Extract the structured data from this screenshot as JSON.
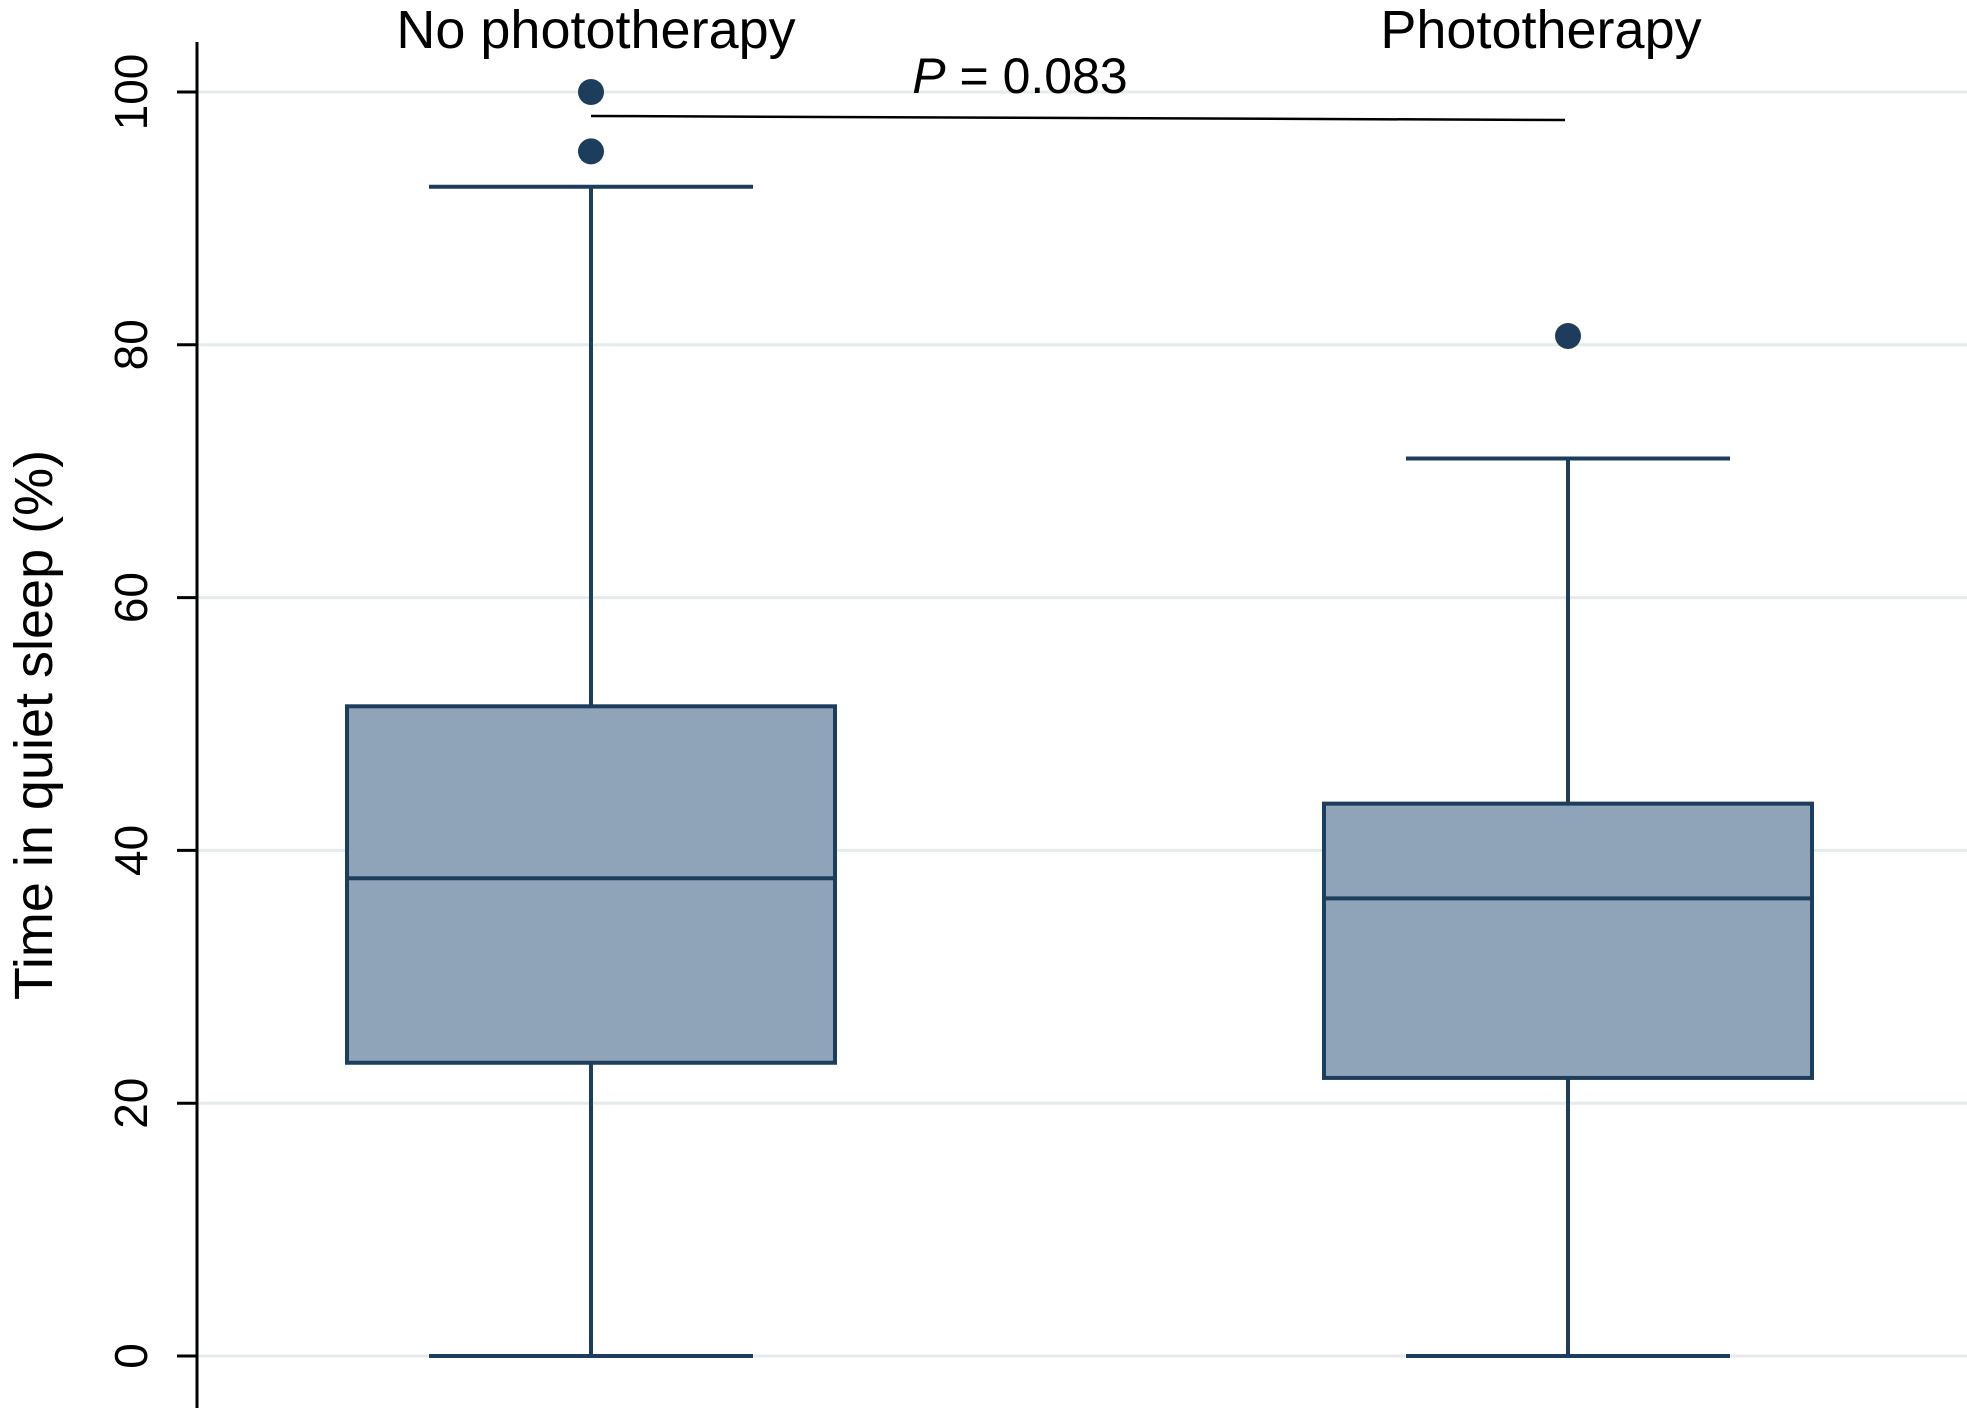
{
  "chart_data": {
    "type": "box",
    "ylabel": "Time in quiet sleep (%)",
    "ylim": [
      0,
      100
    ],
    "yticks": [
      0,
      20,
      40,
      60,
      80,
      100
    ],
    "grid": true,
    "groups": [
      {
        "name": "No phototherapy",
        "whisker_low": 0,
        "q1": 23.2,
        "median": 37.8,
        "q3": 51.4,
        "whisker_high": 92.5,
        "outliers": [
          95.3,
          100
        ]
      },
      {
        "name": "Phototherapy",
        "whisker_low": 0,
        "q1": 22,
        "median": 36.2,
        "q3": 43.7,
        "whisker_high": 71,
        "outliers": [
          80.7
        ]
      }
    ],
    "annotation": {
      "p_symbol": "P",
      "p_rest": " = 0.083"
    },
    "colors": {
      "box_fill": "#8fa4b8",
      "box_stroke": "#1d3d5c",
      "outlier": "#1d3d5c",
      "grid": "#e3ebeb",
      "axis": "#000000"
    }
  }
}
